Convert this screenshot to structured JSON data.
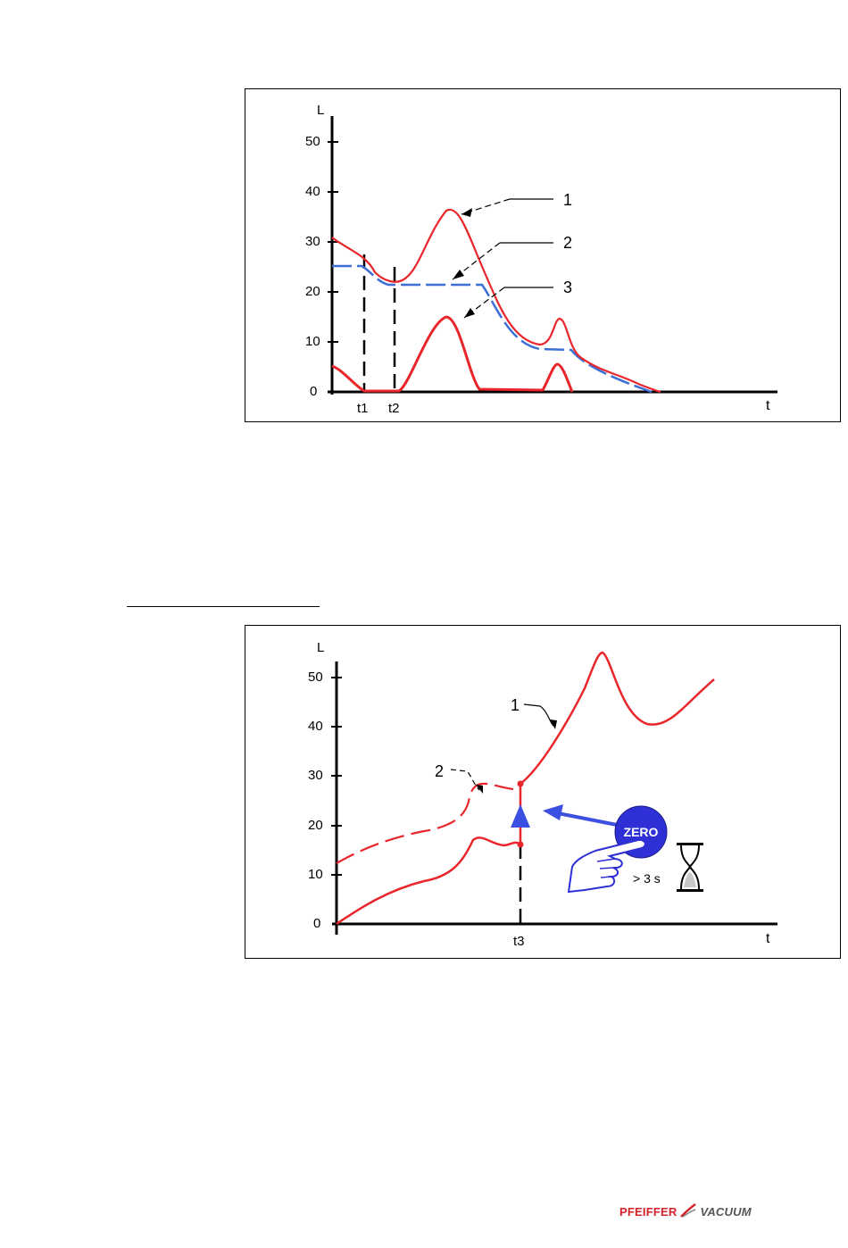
{
  "chart_data": [
    {
      "type": "line",
      "ylabel": "L",
      "xlabel": "t",
      "ylim": [
        0,
        50
      ],
      "yticks": [
        "50",
        "40",
        "30",
        "20",
        "10",
        "0"
      ],
      "xmarkers": [
        "t1",
        "t2"
      ],
      "series": [
        {
          "name": "1",
          "color": "#e8262b",
          "style": "solid"
        },
        {
          "name": "2",
          "color": "#3c6fd6",
          "style": "dashed"
        },
        {
          "name": "3",
          "color": "#e8262b",
          "style": "solid"
        }
      ],
      "callouts": [
        "1",
        "2",
        "3"
      ]
    },
    {
      "type": "line",
      "ylabel": "L",
      "xlabel": "t",
      "ylim": [
        0,
        50
      ],
      "yticks": [
        "50",
        "40",
        "30",
        "20",
        "10",
        "0"
      ],
      "xmarkers": [
        "t3"
      ],
      "series": [
        {
          "name": "1",
          "color": "#e8262b",
          "style": "solid"
        },
        {
          "name": "2",
          "color": "#e8262b",
          "style": "dashed"
        }
      ],
      "callouts": [
        "1",
        "2"
      ],
      "button_label": "ZERO",
      "hold_label": "> 3 s",
      "arrow_color": "#3b4fe0",
      "button_color": "#2f2fd6"
    }
  ],
  "logo": {
    "brand": "PFEIFFER",
    "product": "VACUUM"
  }
}
